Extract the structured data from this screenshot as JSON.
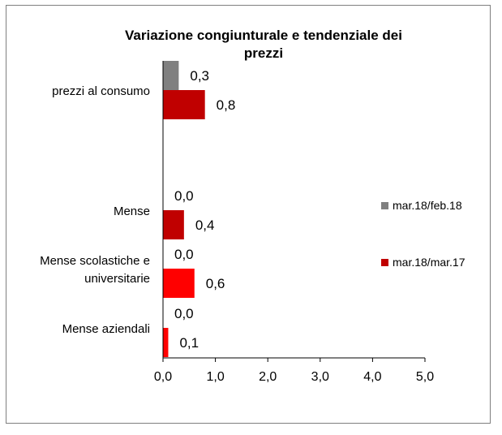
{
  "chart_data": {
    "type": "bar",
    "orientation": "horizontal",
    "title": "Variazione congiunturale e tendenziale dei prezzi",
    "title_lines": [
      "Variazione congiunturale e tendenziale dei",
      "prezzi"
    ],
    "categories": [
      [
        "prezzi al consumo"
      ],
      [
        "Mense"
      ],
      [
        "Mense scolastiche e",
        "universitarie"
      ],
      [
        "Mense aziendali"
      ]
    ],
    "series": [
      {
        "name": "mar.18/feb.18",
        "values": [
          0.3,
          0.0,
          0.0,
          0.0
        ],
        "labels": [
          "0,3",
          "0,0",
          "0,0",
          "0,0"
        ],
        "colors": [
          "#808080",
          "#808080",
          "#808080",
          "#808080"
        ]
      },
      {
        "name": "mar.18/mar.17",
        "values": [
          0.8,
          0.4,
          0.6,
          0.1
        ],
        "labels": [
          "0,8",
          "0,4",
          "0,6",
          "0,1"
        ],
        "colors": [
          "#c00000",
          "#c00000",
          "#ff0000",
          "#ff0000"
        ]
      }
    ],
    "xlim": [
      0,
      5
    ],
    "x_ticks": [
      "0,0",
      "1,0",
      "2,0",
      "3,0",
      "4,0",
      "5,0"
    ],
    "xlabel": "",
    "ylabel": "",
    "grid": false,
    "legend_position": "right",
    "legend_colors": [
      "#808080",
      "#c00000"
    ]
  }
}
